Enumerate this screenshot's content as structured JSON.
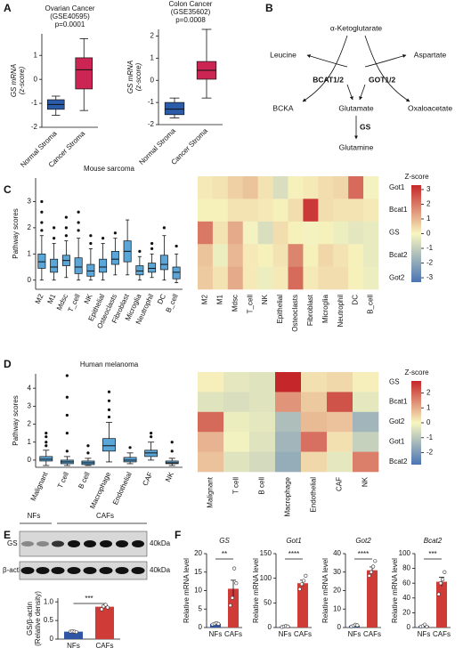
{
  "panel_labels": [
    "A",
    "B",
    "C",
    "D",
    "E",
    "F"
  ],
  "diagram": {
    "nodes": [
      "α-Ketoglutarate",
      "Leucine",
      "Aspartate",
      "BCKA",
      "Glutamate",
      "Oxaloacetate",
      "Glutamine"
    ],
    "enzymes": [
      "BCAT1/2",
      "GOT1/2",
      "GS"
    ]
  },
  "blot": {
    "groups": [
      "NFs",
      "CAFs"
    ],
    "rows": [
      "GS",
      "β-actin"
    ],
    "markers": [
      "40kDa",
      "40kDa"
    ]
  },
  "chart_data": [
    {
      "type": "box",
      "title": "Ovarian Cancer",
      "subtitle": "(GSE40595)",
      "annotation": "p=0.0001",
      "ylabel": [
        "GS mRNA",
        "(z-score)"
      ],
      "categories": [
        "Normal Stroma",
        "Cancer Stroma"
      ],
      "colors": [
        "#2a5caa",
        "#cc2553"
      ],
      "boxes": [
        {
          "whisker_low": -1.5,
          "q1": -1.25,
          "median": -1.05,
          "q3": -0.85,
          "whisker_high": -0.7,
          "outliers": []
        },
        {
          "whisker_low": -1.3,
          "q1": -0.4,
          "median": 0.4,
          "q3": 0.9,
          "whisker_high": 1.7,
          "outliers": []
        }
      ],
      "ylim": [
        -2,
        1.9
      ],
      "yticks": [
        -2,
        -1,
        0,
        1
      ]
    },
    {
      "type": "box",
      "title": "Colon Cancer",
      "subtitle": "(GSE35602)",
      "annotation": "p=0.0008",
      "ylabel": [
        "GS mRNA",
        "(z-score)"
      ],
      "categories": [
        "Normal Stroma",
        "Cancer Stroma"
      ],
      "colors": [
        "#2a5caa",
        "#cc2553"
      ],
      "boxes": [
        {
          "whisker_low": -1.7,
          "q1": -1.55,
          "median": -1.3,
          "q3": -1.0,
          "whisker_high": -0.8,
          "outliers": []
        },
        {
          "whisker_low": -0.8,
          "q1": 0.05,
          "median": 0.45,
          "q3": 0.85,
          "whisker_high": 2.3,
          "outliers": []
        }
      ],
      "ylim": [
        -2,
        2.3
      ],
      "yticks": [
        -2,
        -1,
        0,
        1,
        2
      ]
    },
    {
      "type": "box",
      "title": "Mouse sarcoma",
      "ylabel": [
        "Pathway scores"
      ],
      "categories": [
        "M2",
        "M1",
        "Mdsc",
        "T_cell",
        "NK",
        "Epithelial",
        "Osteoclasts",
        "Fibroblast",
        "Microglia",
        "Neutrophil",
        "DC",
        "B_cell"
      ],
      "color": "#5aa6d9",
      "boxes": [
        {
          "whisker_low": 0,
          "q1": 0.45,
          "median": 0.7,
          "q3": 1.0,
          "whisker_high": 1.7,
          "outliers": [
            1.9,
            2.2,
            2.6,
            3.0
          ]
        },
        {
          "whisker_low": 0,
          "q1": 0.3,
          "median": 0.5,
          "q3": 0.8,
          "whisker_high": 1.4,
          "outliers": [
            1.6,
            2.0
          ]
        },
        {
          "whisker_low": 0.1,
          "q1": 0.55,
          "median": 0.75,
          "q3": 0.95,
          "whisker_high": 1.5,
          "outliers": [
            1.7,
            2.0,
            2.4
          ]
        },
        {
          "whisker_low": 0,
          "q1": 0.25,
          "median": 0.5,
          "q3": 0.85,
          "whisker_high": 1.6,
          "outliers": [
            1.9,
            2.2,
            2.6
          ]
        },
        {
          "whisker_low": 0,
          "q1": 0.15,
          "median": 0.35,
          "q3": 0.6,
          "whisker_high": 1.2,
          "outliers": [
            1.4,
            1.7
          ]
        },
        {
          "whisker_low": 0,
          "q1": 0.3,
          "median": 0.5,
          "q3": 0.8,
          "whisker_high": 1.4,
          "outliers": [
            1.6
          ]
        },
        {
          "whisker_low": 0.2,
          "q1": 0.6,
          "median": 0.8,
          "q3": 1.1,
          "whisker_high": 1.6,
          "outliers": [
            1.8
          ]
        },
        {
          "whisker_low": 0.2,
          "q1": 0.7,
          "median": 1.1,
          "q3": 1.5,
          "whisker_high": 2.3,
          "outliers": []
        },
        {
          "whisker_low": 0,
          "q1": 0.2,
          "median": 0.35,
          "q3": 0.55,
          "whisker_high": 0.9,
          "outliers": [
            1.1
          ]
        },
        {
          "whisker_low": 0.1,
          "q1": 0.3,
          "median": 0.45,
          "q3": 0.65,
          "whisker_high": 1.0,
          "outliers": [
            1.2,
            1.4
          ]
        },
        {
          "whisker_low": 0,
          "q1": 0.4,
          "median": 0.6,
          "q3": 0.95,
          "whisker_high": 1.7,
          "outliers": [
            2.0
          ]
        },
        {
          "whisker_low": -0.1,
          "q1": 0.05,
          "median": 0.3,
          "q3": 0.5,
          "whisker_high": 1.0,
          "outliers": [
            1.3
          ]
        }
      ],
      "ylim": [
        -0.35,
        3.9
      ],
      "yticks": [
        0,
        1,
        2,
        3
      ]
    },
    {
      "type": "heatmap",
      "colorbar_title": "Z-score",
      "rows": [
        "Got1",
        "Bcat1",
        "GS",
        "Bcat2",
        "Got2"
      ],
      "columns": [
        "M2",
        "M1",
        "Mdsc",
        "T_cell",
        "NK",
        "Epithelial",
        "Osteoclasts",
        "Fibroblast",
        "Microglia",
        "Neutrophil",
        "DC",
        "B_cell"
      ],
      "values": [
        [
          0.2,
          0.3,
          0.6,
          0.8,
          0.3,
          -0.6,
          0.1,
          0.2,
          0.4,
          0.5,
          2.2,
          -0.1
        ],
        [
          0.1,
          0.1,
          0.3,
          0.3,
          0.2,
          0.1,
          0.4,
          3.0,
          0.4,
          0.3,
          0.3,
          0.2
        ],
        [
          2.0,
          0.3,
          1.2,
          -0.1,
          -0.6,
          0.4,
          0.1,
          -0.1,
          0.1,
          -0.2,
          -0.4,
          -0.3
        ],
        [
          0.8,
          -0.2,
          1.0,
          0.2,
          0.1,
          0.3,
          1.8,
          0.1,
          0.5,
          0.3,
          0.1,
          -0.3
        ],
        [
          0.7,
          0.3,
          1.2,
          0.2,
          -0.2,
          0.2,
          2.2,
          0.2,
          0.4,
          0.4,
          0.1,
          -0.2
        ]
      ],
      "colormap": [
        "#4a74b4",
        "#f8f6c0",
        "#c5262a"
      ],
      "zlim": [
        -3.3,
        3.3
      ],
      "zticks": [
        -3,
        -2,
        -1,
        0,
        1,
        2,
        3
      ]
    },
    {
      "type": "box",
      "title": "Human melanoma",
      "ylabel": [
        "Pathway scores"
      ],
      "categories": [
        "Malignant",
        "T cell",
        "B cell",
        "Macrophage",
        "Endothelial",
        "CAF",
        "NK"
      ],
      "color": "#5aa6d9",
      "boxes": [
        {
          "whisker_low": -0.3,
          "q1": -0.05,
          "median": 0.05,
          "q3": 0.2,
          "whisker_high": 0.55,
          "outliers": [
            0.8,
            1.0,
            1.3,
            1.5
          ]
        },
        {
          "whisker_low": -0.3,
          "q1": -0.2,
          "median": -0.1,
          "q3": 0.0,
          "whisker_high": 0.2,
          "outliers": [
            0.5,
            1.5,
            2.5,
            3.5,
            4.7
          ]
        },
        {
          "whisker_low": -0.3,
          "q1": -0.25,
          "median": -0.15,
          "q3": -0.05,
          "whisker_high": 0.1,
          "outliers": [
            0.4,
            0.8
          ]
        },
        {
          "whisker_low": -0.1,
          "q1": 0.5,
          "median": 0.8,
          "q3": 1.2,
          "whisker_high": 2.1,
          "outliers": [
            2.4,
            2.8,
            3.3,
            3.8
          ]
        },
        {
          "whisker_low": -0.2,
          "q1": -0.1,
          "median": 0.0,
          "q3": 0.15,
          "whisker_high": 0.4,
          "outliers": [
            0.7
          ]
        },
        {
          "whisker_low": 0,
          "q1": 0.2,
          "median": 0.4,
          "q3": 0.55,
          "whisker_high": 1.0,
          "outliers": [
            1.3,
            1.5
          ]
        },
        {
          "whisker_low": -0.3,
          "q1": -0.2,
          "median": -0.15,
          "q3": -0.05,
          "whisker_high": 0.1,
          "outliers": [
            0.5,
            1.0
          ]
        }
      ],
      "ylim": [
        -0.4,
        4.8
      ],
      "yticks": [
        0,
        1,
        2,
        3,
        4
      ]
    },
    {
      "type": "heatmap",
      "colorbar_title": "Z-score",
      "rows": [
        "GS",
        "Bcat1",
        "Got2",
        "Got1",
        "Bcat2"
      ],
      "columns": [
        "Malignant",
        "T cell",
        "B cell",
        "Macrophage",
        "Endothelial",
        "CAF",
        "NK"
      ],
      "values": [
        [
          0.1,
          -0.3,
          -0.4,
          2.8,
          0.3,
          0.4,
          0.1
        ],
        [
          -0.4,
          -0.5,
          -0.4,
          1.3,
          0.6,
          2.2,
          -0.3
        ],
        [
          1.9,
          -0.2,
          -0.3,
          -1.2,
          0.8,
          0.7,
          -1.4
        ],
        [
          0.9,
          -0.1,
          -0.4,
          -1.4,
          1.8,
          0.3,
          -0.8
        ],
        [
          0.7,
          -0.4,
          -0.6,
          -1.6,
          0.4,
          -0.3,
          1.6
        ]
      ],
      "colormap": [
        "#4a74b4",
        "#f8f6c0",
        "#c5262a"
      ],
      "zlim": [
        -2.8,
        2.8
      ],
      "zticks": [
        -2,
        -1,
        0,
        1,
        2
      ]
    },
    {
      "type": "bar",
      "ylabel": [
        "GS/β-actin",
        "(Relative density)"
      ],
      "categories": [
        "NFs",
        "CAFs"
      ],
      "colors": [
        "#2f55a4",
        "#cf3b37"
      ],
      "values": [
        0.2,
        0.87
      ],
      "errors": [
        0.01,
        0.04
      ],
      "points": [
        [
          0.2,
          0.21,
          0.2,
          0.19
        ],
        [
          0.8,
          0.88,
          0.92,
          0.85
        ]
      ],
      "significance": "***",
      "ylim": [
        0,
        1.1
      ],
      "yticks": [
        0,
        0.5,
        {
          "value": 1,
          "label": "1.0"
        }
      ]
    },
    {
      "type": "bar",
      "title": "GS",
      "ylabel": [
        "Relative mRNA level"
      ],
      "categories": [
        "NFs",
        "CAFs"
      ],
      "colors": [
        "#2f55a4",
        "#cf3b37"
      ],
      "values": [
        1,
        10.5
      ],
      "errors": [
        0.2,
        2.3
      ],
      "points": [
        [
          0.8,
          1,
          1.2,
          1.0
        ],
        [
          6,
          8,
          16,
          12
        ]
      ],
      "significance": "**",
      "ylim": [
        0,
        20
      ],
      "yticks": [
        0,
        5,
        10,
        15,
        20
      ]
    },
    {
      "type": "bar",
      "title": "Got1",
      "ylabel": [
        "Relative mRNA level"
      ],
      "categories": [
        "NFs",
        "CAFs"
      ],
      "colors": [
        "#2f55a4",
        "#cf3b37"
      ],
      "values": [
        2,
        90
      ],
      "errors": [
        0.5,
        6
      ],
      "points": [
        [
          1,
          2,
          3,
          2
        ],
        [
          78,
          88,
          95,
          105
        ]
      ],
      "significance": "****",
      "ylim": [
        0,
        150
      ],
      "yticks": [
        0,
        50,
        100,
        150
      ]
    },
    {
      "type": "bar",
      "title": "Got2",
      "ylabel": [
        "Relative mRNA level"
      ],
      "categories": [
        "NFs",
        "CAFs"
      ],
      "colors": [
        "#2f55a4",
        "#cf3b37"
      ],
      "values": [
        1,
        31
      ],
      "errors": [
        0.3,
        1.8
      ],
      "points": [
        [
          0.5,
          1,
          1.5,
          1.2
        ],
        [
          28,
          30,
          33,
          36
        ]
      ],
      "significance": "****",
      "ylim": [
        0,
        40
      ],
      "yticks": [
        0,
        10,
        20,
        30,
        40
      ]
    },
    {
      "type": "bar",
      "title": "Bcat2",
      "ylabel": [
        "Relative mRNA level"
      ],
      "categories": [
        "NFs",
        "CAFs"
      ],
      "colors": [
        "#2f55a4",
        "#cf3b37"
      ],
      "values": [
        2,
        62
      ],
      "errors": [
        0.8,
        6
      ],
      "points": [
        [
          1,
          2,
          4,
          1
        ],
        [
          45,
          60,
          65,
          75
        ]
      ],
      "significance": "***",
      "ylim": [
        0,
        100
      ],
      "yticks": [
        0,
        20,
        40,
        60,
        80,
        100
      ]
    }
  ]
}
